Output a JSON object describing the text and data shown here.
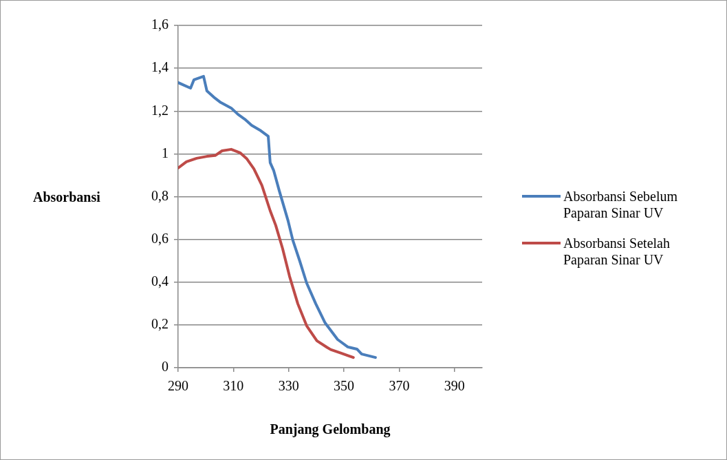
{
  "chart_data": {
    "type": "line",
    "xlabel": "Panjang Gelombang",
    "ylabel": "Absorbansi",
    "xlim": [
      290,
      400
    ],
    "xticks": [
      290,
      310,
      330,
      350,
      370,
      390
    ],
    "ylim": [
      0,
      1.6
    ],
    "yticks": [
      {
        "value": 0,
        "label": "0"
      },
      {
        "value": 0.2,
        "label": "0,2"
      },
      {
        "value": 0.4,
        "label": "0,4"
      },
      {
        "value": 0.6,
        "label": "0,6"
      },
      {
        "value": 0.8,
        "label": "0,8"
      },
      {
        "value": 1,
        "label": "1"
      },
      {
        "value": 1.2,
        "label": "1,2"
      },
      {
        "value": 1.4,
        "label": "1,4"
      },
      {
        "value": 1.6,
        "label": "1,6"
      }
    ],
    "grid": "y",
    "legend": "right",
    "marker": "none",
    "line_style": "solid",
    "series": [
      {
        "name": "Absorbansi Sebelum Paparan Sinar UV",
        "color": "#4a7ebb",
        "x": [
          290,
          294.5,
          295.7,
          299.2,
          300.4,
          302.9,
          305.4,
          309.2,
          311.6,
          314.1,
          316.6,
          319.9,
          322.6,
          323.3,
          324.6,
          326.6,
          329.8,
          331.5,
          334,
          336.5,
          339.8,
          343.2,
          347.7,
          351.4,
          354.7,
          356.4,
          361.4
        ],
        "values": [
          1.333,
          1.307,
          1.346,
          1.362,
          1.294,
          1.265,
          1.24,
          1.214,
          1.185,
          1.162,
          1.133,
          1.108,
          1.082,
          0.959,
          0.921,
          0.827,
          0.686,
          0.596,
          0.499,
          0.396,
          0.299,
          0.209,
          0.132,
          0.097,
          0.087,
          0.064,
          0.048
        ]
      },
      {
        "name": "Absorbansi Setelah Paparan Sinar UV",
        "color": "#be4b48",
        "x": [
          290,
          293,
          296.7,
          300.4,
          303.4,
          305.9,
          309.2,
          312.4,
          314.9,
          317.4,
          320.3,
          323.3,
          325.3,
          327.8,
          330.3,
          333.3,
          336.5,
          340.2,
          343.9,
          345.2,
          349,
          353.4
        ],
        "values": [
          0.934,
          0.963,
          0.979,
          0.988,
          0.992,
          1.014,
          1.021,
          1.005,
          0.976,
          0.93,
          0.853,
          0.734,
          0.666,
          0.557,
          0.428,
          0.299,
          0.196,
          0.126,
          0.095,
          0.085,
          0.068,
          0.048
        ]
      }
    ]
  }
}
